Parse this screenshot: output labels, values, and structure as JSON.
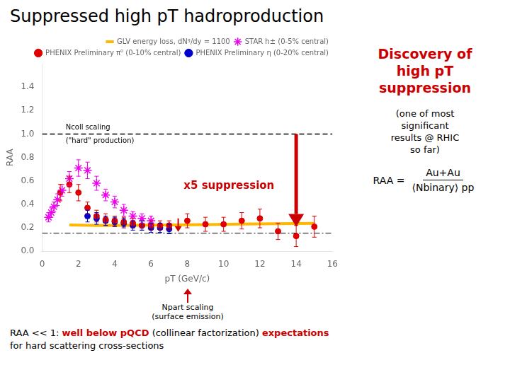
{
  "chart_data": {
    "type": "scatter",
    "title": "Suppressed high pT hadroproduction",
    "x_label": "pT (GeV/c)",
    "y_label": "RAA",
    "xlim": [
      0,
      16
    ],
    "xticks": [
      0,
      2,
      4,
      6,
      8,
      10,
      12,
      14,
      16
    ],
    "ylim": [
      0,
      1.6
    ],
    "yticks": [
      {
        "value": 0,
        "label": "0.0"
      },
      0.2,
      0.4,
      0.6,
      0.8,
      {
        "value": 1,
        "label": "1.0"
      },
      1.2,
      1.4
    ],
    "grid": false,
    "legend": "upper right",
    "series": [
      {
        "name": "GLV energy loss, dNᵍ/dy = 1100",
        "type": "line",
        "line_style": "solid",
        "color": "#FFB800",
        "x": [
          1.5,
          3.0,
          5.0,
          7.0,
          9.0,
          11.0,
          13.0,
          15.0
        ],
        "values": [
          0.225,
          0.22,
          0.222,
          0.225,
          0.228,
          0.232,
          0.235,
          0.238
        ]
      },
      {
        "name": "STAR h± (0-5% central)",
        "type": "scatter",
        "marker": "star",
        "color": "#EE00EE",
        "x": [
          0.35,
          0.5,
          0.65,
          0.85,
          1.1,
          1.5,
          2.0,
          2.5,
          3.0,
          3.5,
          4.0,
          4.5,
          5.0,
          5.5,
          6.0
        ],
        "values": [
          0.29,
          0.33,
          0.38,
          0.44,
          0.52,
          0.62,
          0.71,
          0.69,
          0.58,
          0.48,
          0.42,
          0.35,
          0.3,
          0.28,
          0.26
        ],
        "errors": [
          0.04,
          0.04,
          0.04,
          0.05,
          0.05,
          0.06,
          0.07,
          0.07,
          0.06,
          0.05,
          0.05,
          0.05,
          0.04,
          0.04,
          0.04
        ]
      },
      {
        "name": "PHENIX Preliminary π⁰ (0-10% central)",
        "type": "scatter",
        "marker": "circle",
        "color": "#DD0000",
        "x": [
          1.0,
          1.5,
          2.0,
          2.5,
          3.0,
          3.5,
          4.0,
          4.5,
          5.0,
          5.5,
          6.0,
          6.5,
          7.0,
          8.0,
          9.0,
          10.0,
          11.0,
          12.0,
          13.0,
          14.0,
          15.0
        ],
        "values": [
          0.5,
          0.57,
          0.5,
          0.37,
          0.3,
          0.27,
          0.26,
          0.25,
          0.24,
          0.22,
          0.22,
          0.22,
          0.22,
          0.26,
          0.23,
          0.23,
          0.26,
          0.28,
          0.17,
          0.13,
          0.21
        ],
        "errors": [
          0.07,
          0.07,
          0.07,
          0.05,
          0.05,
          0.05,
          0.04,
          0.04,
          0.04,
          0.04,
          0.04,
          0.04,
          0.04,
          0.06,
          0.06,
          0.06,
          0.07,
          0.08,
          0.07,
          0.09,
          0.09
        ]
      },
      {
        "name": "PHENIX Preliminary η (0-20% central)",
        "type": "scatter",
        "marker": "circle",
        "color": "#0000CC",
        "x": [
          2.5,
          3.0,
          3.5,
          4.0,
          4.5,
          5.0,
          5.5,
          6.0,
          6.5,
          7.0
        ],
        "values": [
          0.3,
          0.28,
          0.26,
          0.25,
          0.24,
          0.22,
          0.22,
          0.2,
          0.2,
          0.19
        ],
        "errors": [
          0.05,
          0.05,
          0.04,
          0.04,
          0.04,
          0.04,
          0.04,
          0.04,
          0.04,
          0.04
        ]
      }
    ],
    "reference_lines": [
      {
        "y": 1.0,
        "line_style": "dashed",
        "color": "#000000"
      },
      {
        "y": 0.155,
        "line_style": "dashdot",
        "color": "#000000"
      }
    ],
    "annotations": [
      {
        "text": "Ncoll scaling",
        "x": 1.3,
        "y": 1.025,
        "color": "#000000"
      },
      {
        "text": "(\"hard\" production)",
        "x": 1.3,
        "y": 0.97,
        "color": "#000000"
      },
      {
        "text": "x5 suppression",
        "x": 7.8,
        "y": 0.6,
        "color": "#CC0000"
      }
    ],
    "arrows": [
      {
        "x": 14.0,
        "from": 1.0,
        "to": 0.21,
        "color": "#CC0000"
      },
      {
        "x": 7.5,
        "from": 0.28,
        "to": 0.165,
        "color": "#CC0000"
      }
    ],
    "side_texts": [
      {
        "text": "Discovery of\nhigh pT\nsuppression",
        "color": "#CC0000"
      },
      {
        "text": "(one of most\nsignificant\nresults @ RHIC\nso far)",
        "color": "#000000"
      }
    ],
    "formula": {
      "left": "RAA =",
      "numerator": "Au+Au",
      "denominator": "⟨Nbinary⟩ pp"
    },
    "below_plot": {
      "text": "Npart scaling\n(surface emission)",
      "color": "#000000",
      "arrow_color": "#CC0000"
    },
    "paragraph": [
      {
        "text": "RAA << 1: ",
        "color": "#000000"
      },
      {
        "text": "well below pQCD",
        "color": "#CC0000"
      },
      {
        "text": " (collinear factorization) ",
        "color": "#000000"
      },
      {
        "text": "expectations",
        "color": "#CC0000"
      },
      {
        "text": " for hard scattering cross-sections",
        "color": "#000000"
      }
    ]
  }
}
